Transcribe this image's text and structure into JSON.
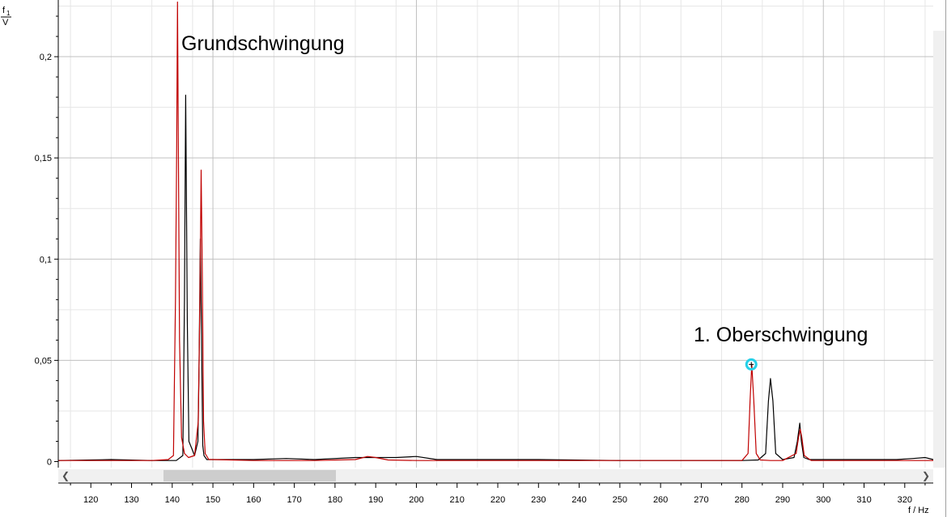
{
  "y_axis_symbol": "f",
  "y_axis_subscript": "1",
  "y_axis_unit": "V",
  "x_axis_label": "f / Hz",
  "annotations": [
    "Grundschwingung",
    "1. Oberschwingung"
  ],
  "colors": {
    "series_red": "#c00000",
    "series_black": "#000000",
    "marker": "#26d0e8",
    "grid_major": "#c0c0c0",
    "grid_minor": "#e6e6e6"
  },
  "scrollbar": {
    "left_arrow_icon": "chevron-left-icon",
    "right_arrow_icon": "chevron-right-icon"
  },
  "chart_data": {
    "type": "line",
    "title": "",
    "xlabel": "f / Hz",
    "ylabel": "f1 / V",
    "xlim": [
      112,
      327
    ],
    "ylim": [
      -0.003,
      0.228
    ],
    "x_ticks": [
      {
        "v": 120,
        "t": "120"
      },
      {
        "v": 130,
        "t": "130"
      },
      {
        "v": 140,
        "t": "140"
      },
      {
        "v": 150,
        "t": "150"
      },
      {
        "v": 160,
        "t": "160"
      },
      {
        "v": 170,
        "t": "170"
      },
      {
        "v": 180,
        "t": "180"
      },
      {
        "v": 190,
        "t": "190"
      },
      {
        "v": 200,
        "t": "200"
      },
      {
        "v": 210,
        "t": "210"
      },
      {
        "v": 220,
        "t": "220"
      },
      {
        "v": 230,
        "t": "230"
      },
      {
        "v": 240,
        "t": "240"
      },
      {
        "v": 250,
        "t": "250"
      },
      {
        "v": 260,
        "t": "260"
      },
      {
        "v": 270,
        "t": "270"
      },
      {
        "v": 280,
        "t": "280"
      },
      {
        "v": 290,
        "t": "290"
      },
      {
        "v": 300,
        "t": "300"
      },
      {
        "v": 310,
        "t": "310"
      },
      {
        "v": 320,
        "t": "320"
      }
    ],
    "y_ticks": [
      {
        "v": 0,
        "t": "0"
      },
      {
        "v": 0.05,
        "t": "0,05"
      },
      {
        "v": 0.1,
        "t": "0,1"
      },
      {
        "v": 0.15,
        "t": "0,15"
      },
      {
        "v": 0.2,
        "t": "0,2"
      }
    ],
    "grid": true,
    "series": [
      {
        "color": "#000000",
        "x": [
          112,
          125,
          135,
          141,
          142.6,
          143.0,
          143.3,
          143.7,
          144.1,
          145.5,
          146.3,
          146.6,
          146.9,
          147.2,
          147.5,
          147.8,
          148.5,
          150,
          160,
          168,
          175,
          185,
          195,
          200,
          205,
          215,
          230,
          250,
          270,
          280,
          284,
          285.8,
          286.5,
          287.0,
          287.6,
          288.3,
          290,
          292.8,
          293.6,
          294.2,
          294.6,
          295.2,
          296.5,
          300,
          310,
          318,
          322,
          325,
          327
        ],
        "y": [
          0.0005,
          0.001,
          0.0005,
          0.0005,
          0.003,
          0.08,
          0.181,
          0.07,
          0.01,
          0.003,
          0.01,
          0.05,
          0.11,
          0.06,
          0.008,
          0.003,
          0.001,
          0.001,
          0.001,
          0.0015,
          0.001,
          0.002,
          0.002,
          0.0025,
          0.001,
          0.001,
          0.001,
          0.0005,
          0.0005,
          0.0005,
          0.0008,
          0.004,
          0.03,
          0.041,
          0.03,
          0.004,
          0.001,
          0.002,
          0.01,
          0.019,
          0.01,
          0.002,
          0.001,
          0.001,
          0.001,
          0.001,
          0.0015,
          0.002,
          0.001
        ]
      },
      {
        "color": "#c00000",
        "x": [
          112,
          125,
          135,
          139,
          140.3,
          140.8,
          141.1,
          141.3,
          141.5,
          141.8,
          142.3,
          143,
          144,
          145.5,
          146.4,
          146.8,
          147.1,
          147.4,
          147.7,
          148.1,
          149,
          150,
          160,
          175,
          185,
          188,
          190,
          193,
          200,
          220,
          250,
          270,
          280,
          281.5,
          282.0,
          282.4,
          282.9,
          283.5,
          284.5,
          287,
          290,
          293.3,
          293.9,
          294.3,
          294.7,
          295.3,
          297,
          310,
          327
        ],
        "y": [
          0.0005,
          0.0005,
          0.0005,
          0.001,
          0.003,
          0.08,
          0.155,
          0.227,
          0.16,
          0.06,
          0.012,
          0.004,
          0.002,
          0.003,
          0.02,
          0.08,
          0.144,
          0.09,
          0.02,
          0.004,
          0.001,
          0.001,
          0.0005,
          0.0005,
          0.001,
          0.0025,
          0.002,
          0.0008,
          0.0005,
          0.0005,
          0.0005,
          0.0005,
          0.0005,
          0.004,
          0.03,
          0.048,
          0.03,
          0.004,
          0.0008,
          0.0005,
          0.0005,
          0.004,
          0.012,
          0.016,
          0.012,
          0.003,
          0.0005,
          0.0005,
          0.0005
        ]
      }
    ],
    "marker": {
      "x": 282.3,
      "y": 0.048
    }
  }
}
